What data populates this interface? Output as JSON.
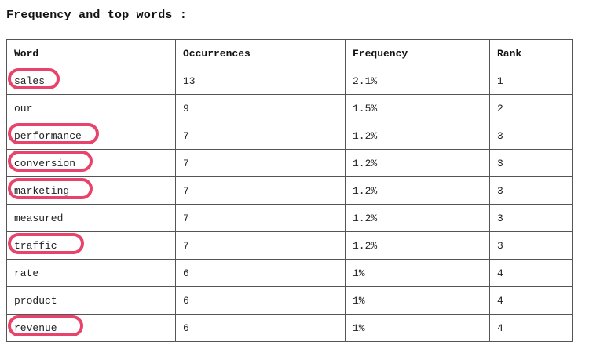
{
  "page": {
    "title": "Frequency and top words :"
  },
  "table": {
    "headers": [
      "Word",
      "Occurrences",
      "Frequency",
      "Rank"
    ],
    "rows": [
      {
        "word": "sales",
        "occurrences": "13",
        "frequency": "2.1%",
        "rank": "1",
        "highlighted": true
      },
      {
        "word": "our",
        "occurrences": "9",
        "frequency": "1.5%",
        "rank": "2",
        "highlighted": false
      },
      {
        "word": "performance",
        "occurrences": "7",
        "frequency": "1.2%",
        "rank": "3",
        "highlighted": true
      },
      {
        "word": "conversion",
        "occurrences": "7",
        "frequency": "1.2%",
        "rank": "3",
        "highlighted": true
      },
      {
        "word": "marketing",
        "occurrences": "7",
        "frequency": "1.2%",
        "rank": "3",
        "highlighted": true
      },
      {
        "word": "measured",
        "occurrences": "7",
        "frequency": "1.2%",
        "rank": "3",
        "highlighted": false
      },
      {
        "word": "traffic",
        "occurrences": "7",
        "frequency": "1.2%",
        "rank": "3",
        "highlighted": true
      },
      {
        "word": "rate",
        "occurrences": "6",
        "frequency": "1%",
        "rank": "4",
        "highlighted": false
      },
      {
        "word": "product",
        "occurrences": "6",
        "frequency": "1%",
        "rank": "4",
        "highlighted": false
      },
      {
        "word": "revenue",
        "occurrences": "6",
        "frequency": "1%",
        "rank": "4",
        "highlighted": true
      }
    ]
  },
  "colors": {
    "highlight": "#e8436b",
    "border": "#555555"
  }
}
